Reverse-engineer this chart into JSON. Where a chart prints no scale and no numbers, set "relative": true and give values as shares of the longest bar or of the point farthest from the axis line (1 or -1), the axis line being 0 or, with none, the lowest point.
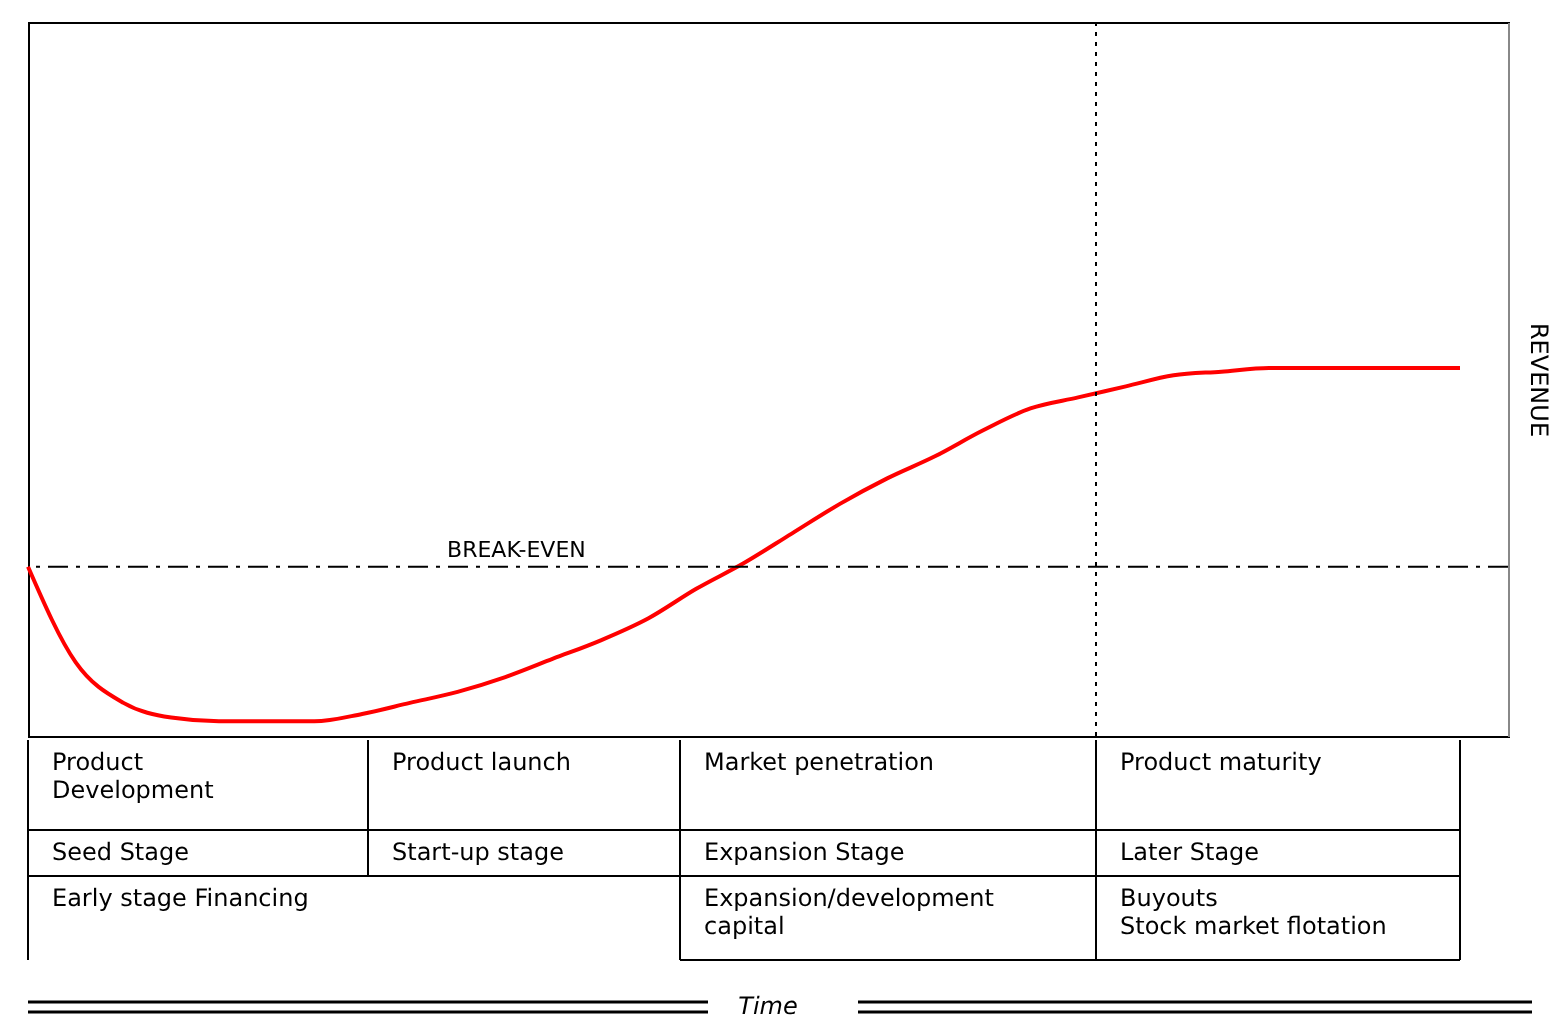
{
  "chart_data": {
    "type": "line",
    "ylabel": "REVENUE",
    "relative": true,
    "tick_labels": false,
    "categories": [
      null,
      null,
      null,
      null,
      null,
      null,
      null,
      null,
      null,
      null,
      null,
      null,
      null,
      null,
      null,
      null,
      null,
      null,
      null,
      null,
      null,
      null,
      null,
      null,
      null,
      null,
      null,
      null,
      null,
      null,
      null
    ],
    "series": [
      {
        "color": "#ff0000",
        "line_style": "solid",
        "values": [
          0.46,
          0.2,
          0.09,
          0.05,
          0.04,
          0.04,
          0.04,
          0.06,
          0.09,
          0.12,
          0.16,
          0.21,
          0.26,
          0.32,
          0.4,
          0.47,
          0.55,
          0.63,
          0.7,
          0.76,
          0.83,
          0.89,
          0.92,
          0.95,
          0.98,
          0.99,
          1,
          1,
          1,
          1,
          1
        ]
      }
    ],
    "ref_lines": [
      {
        "axis": "y",
        "value": 0.46,
        "label": "BREAK-EVEN",
        "line_style": "dashed",
        "color": "#000000"
      }
    ],
    "annotations": [
      "Product\nDevelopment",
      "Product launch",
      "Market penetration",
      "Product maturity",
      "Seed Stage",
      "Start-up stage",
      "Expansion Stage",
      "Later Stage",
      "Early stage Financing",
      "Expansion/development\ncapital",
      "Buyouts\nStock market flotation",
      "Time"
    ]
  }
}
